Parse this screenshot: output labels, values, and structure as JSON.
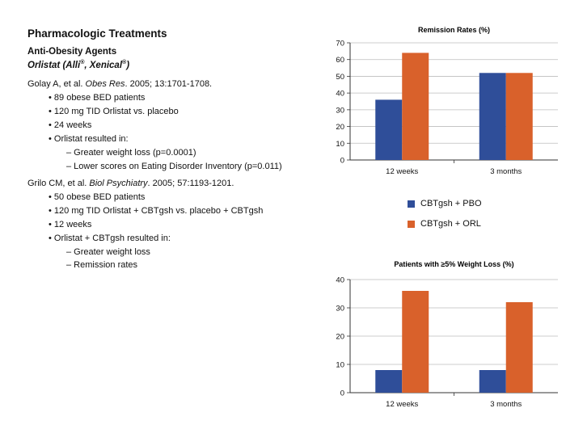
{
  "page": {
    "title": "Pharmacologic Treatments",
    "section": "Anti-Obesity Agents",
    "drug_name": "Orlistat (Alli",
    "drug_mark1": "®",
    "drug_sep": ", Xenical",
    "drug_mark2": "®",
    "drug_close": ")"
  },
  "studies": [
    {
      "cite_prefix": "Golay A, et al. ",
      "cite_journal": "Obes Res",
      "cite_suffix": ". 2005; 13:1701-1708.",
      "bullets": [
        "• 89 obese BED patients",
        "• 120 mg TID Orlistat vs. placebo",
        "• 24 weeks",
        "• Orlistat resulted in:"
      ],
      "sub_bullets": [
        "– Greater weight loss (p=0.0001)",
        "– Lower scores on Eating Disorder Inventory (p=0.011)"
      ]
    },
    {
      "cite_prefix": "Grilo CM, et al. ",
      "cite_journal": "Biol Psychiatry",
      "cite_suffix": ". 2005; 57:1193-1201.",
      "bullets": [
        "• 50 obese BED patients",
        "• 120 mg TID Orlistat + CBTgsh vs. placebo + CBTgsh",
        "• 12 weeks",
        "• Orlistat + CBTgsh resulted in:"
      ],
      "sub_bullets": [
        "– Greater weight loss",
        "– Remission rates"
      ]
    }
  ],
  "legend": [
    {
      "label": "CBTgsh + PBO",
      "color": "#2f4e99"
    },
    {
      "label": "CBTgsh + ORL",
      "color": "#d9612b"
    }
  ],
  "chart_data": [
    {
      "type": "bar",
      "title": "Remission Rates (%)",
      "categories": [
        "12 weeks",
        "3 months"
      ],
      "series": [
        {
          "name": "CBTgsh + PBO",
          "values": [
            36,
            52
          ]
        },
        {
          "name": "CBTgsh + ORL",
          "values": [
            64,
            52
          ]
        }
      ],
      "ylim": [
        0,
        70
      ],
      "yticks": [
        0,
        10,
        20,
        30,
        40,
        50,
        60,
        70
      ],
      "grid": true
    },
    {
      "type": "bar",
      "title": "Patients with ≥5% Weight Loss (%)",
      "categories": [
        "12 weeks",
        "3 months"
      ],
      "series": [
        {
          "name": "CBTgsh + PBO",
          "values": [
            8,
            8
          ]
        },
        {
          "name": "CBTgsh + ORL",
          "values": [
            36,
            32
          ]
        }
      ],
      "ylim": [
        0,
        40
      ],
      "yticks": [
        0,
        10,
        20,
        30,
        40
      ],
      "grid": true
    }
  ]
}
